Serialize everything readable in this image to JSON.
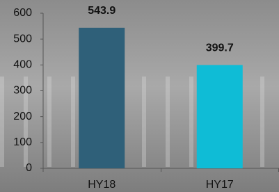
{
  "chart_data": {
    "type": "bar",
    "categories": [
      "HY18",
      "HY17"
    ],
    "values": [
      543.9,
      399.7
    ],
    "colors": [
      "#2f6079",
      "#0fbcd6"
    ],
    "ylim": [
      0,
      600
    ],
    "yticks": [
      0,
      100,
      200,
      300,
      400,
      500,
      600
    ]
  }
}
